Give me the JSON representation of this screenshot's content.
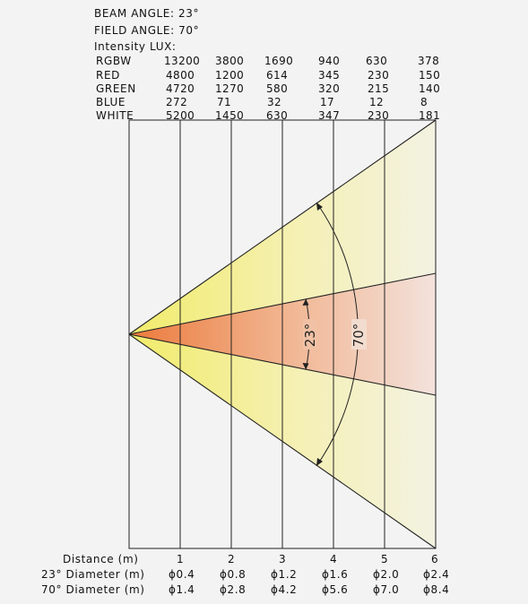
{
  "header": {
    "beam_angle": "BEAM ANGLE: 23°",
    "field_angle": "FIELD ANGLE: 70°",
    "intensity_title": "Intensity LUX:"
  },
  "table": {
    "rows": [
      {
        "label": "RGBW",
        "values": [
          "13200",
          "3800",
          "1690",
          "940",
          "630",
          "378"
        ]
      },
      {
        "label": "RED",
        "values": [
          "4800",
          "1200",
          "614",
          "345",
          "230",
          "150"
        ]
      },
      {
        "label": "GREEN",
        "values": [
          "4720",
          "1270",
          "580",
          "320",
          "215",
          "140"
        ]
      },
      {
        "label": "BLUE",
        "values": [
          "272",
          "71",
          "32",
          "17",
          "12",
          "8"
        ]
      },
      {
        "label": "WHITE",
        "values": [
          "5200",
          "1450",
          "630",
          "347",
          "230",
          "181"
        ]
      }
    ]
  },
  "diagram": {
    "beam_label": "23°",
    "field_label": "70°",
    "colors": {
      "beam_core": "#ec7a3c",
      "field_core": "#f1ec6a",
      "background": "#f3f3f3"
    }
  },
  "footer": {
    "distance_label": "Distance (m)",
    "beam_diameter_label": "23° Diameter (m)",
    "field_diameter_label": "70° Diameter (m)",
    "distances": [
      "1",
      "2",
      "3",
      "4",
      "5",
      "6"
    ],
    "beam_diameters": [
      "ϕ0.4",
      "ϕ0.8",
      "ϕ1.2",
      "ϕ1.6",
      "ϕ2.0",
      "ϕ2.4"
    ],
    "field_diameters": [
      "ϕ1.4",
      "ϕ2.8",
      "ϕ4.2",
      "ϕ5.6",
      "ϕ7.0",
      "ϕ8.4"
    ]
  }
}
